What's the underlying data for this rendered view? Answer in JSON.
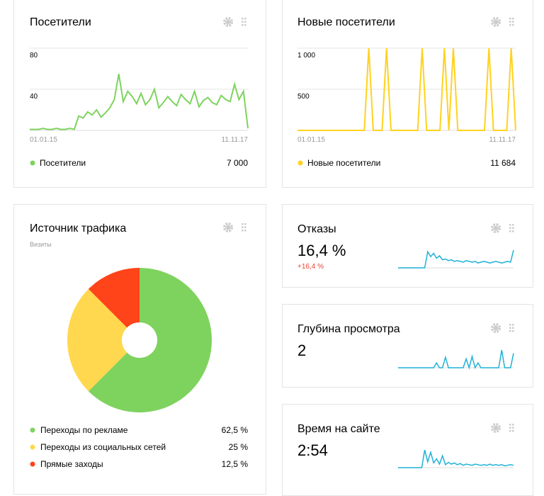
{
  "widgets": [
    {
      "title": "Посетители",
      "chart": {
        "type": "line",
        "x_labels": [
          "01.01.15",
          "11.11.17"
        ],
        "ylim": [
          0,
          80
        ],
        "yticks": [
          40,
          80
        ],
        "series": [
          {
            "name": "Посетители",
            "color": "#7ed35f",
            "total": "7 000",
            "values": [
              1,
              1,
              1,
              2,
              1,
              1,
              2,
              1,
              1,
              2,
              1,
              14,
              12,
              18,
              15,
              20,
              13,
              17,
              22,
              30,
              55,
              28,
              38,
              33,
              26,
              36,
              25,
              30,
              40,
              22,
              27,
              33,
              28,
              24,
              35,
              30,
              26,
              38,
              23,
              29,
              32,
              27,
              25,
              34,
              30,
              28,
              45,
              30,
              38,
              2
            ]
          }
        ]
      }
    },
    {
      "title": "Новые посетители",
      "chart": {
        "type": "line",
        "x_labels": [
          "01.01.15",
          "11.11.17"
        ],
        "ylim": [
          0,
          1000
        ],
        "yticks": [
          {
            "value": 500,
            "label": "500"
          },
          {
            "value": 1000,
            "label": "1 000"
          }
        ],
        "series": [
          {
            "name": "Новые посетители",
            "color": "#ffd21f",
            "total": "11 684",
            "values": [
              0,
              0,
              0,
              0,
              0,
              0,
              0,
              0,
              0,
              0,
              0,
              0,
              0,
              0,
              0,
              0,
              1000,
              0,
              0,
              0,
              1000,
              0,
              0,
              0,
              0,
              0,
              0,
              0,
              1000,
              0,
              0,
              0,
              0,
              1000,
              0,
              1000,
              0,
              0,
              0,
              0,
              0,
              0,
              0,
              1000,
              0,
              0,
              0,
              0,
              1000,
              0
            ]
          }
        ]
      }
    },
    {
      "title": "Источник трафика",
      "subtitle": "Визиты",
      "chart": {
        "type": "donut",
        "categories": [
          "Переходы по рекламе",
          "Переходы из социальных сетей",
          "Прямые заходы"
        ],
        "values": [
          62.5,
          25,
          12.5
        ],
        "value_labels": [
          "62,5 %",
          "25 %",
          "12,5 %"
        ],
        "colors": [
          "#7ed35f",
          "#ffd84f",
          "#ff4419"
        ]
      }
    },
    {
      "title": "Отказы",
      "value": "16,4 %",
      "delta": "+16,4 %",
      "chart": {
        "type": "sparkline",
        "color": "#1fb1d8",
        "values": [
          0,
          0,
          0,
          0,
          0,
          0,
          0,
          0,
          0,
          0,
          20,
          14,
          18,
          12,
          15,
          10,
          11,
          9,
          10,
          8,
          9,
          8,
          7,
          9,
          8,
          7,
          8,
          6,
          7,
          8,
          7,
          6,
          7,
          8,
          7,
          6,
          7,
          8,
          7,
          22
        ]
      }
    },
    {
      "title": "Глубина просмотра",
      "value": "2",
      "chart": {
        "type": "sparkline",
        "color": "#1fb1d8",
        "values": [
          0,
          0,
          0,
          0,
          0,
          0,
          0,
          0,
          0,
          0,
          0,
          0,
          0,
          6,
          0,
          0,
          13,
          0,
          0,
          0,
          0,
          0,
          0,
          11,
          0,
          14,
          0,
          6,
          0,
          0,
          0,
          0,
          0,
          0,
          0,
          22,
          0,
          0,
          0,
          18
        ]
      }
    },
    {
      "title": "Время на сайте",
      "value": "2:54",
      "chart": {
        "type": "sparkline",
        "color": "#1fb1d8",
        "values": [
          0,
          0,
          0,
          0,
          0,
          0,
          0,
          0,
          0,
          30,
          10,
          26,
          8,
          15,
          6,
          20,
          5,
          9,
          6,
          8,
          5,
          7,
          4,
          6,
          5,
          4,
          6,
          5,
          4,
          5,
          4,
          6,
          4,
          5,
          4,
          5,
          3,
          4,
          5,
          4
        ]
      }
    }
  ]
}
